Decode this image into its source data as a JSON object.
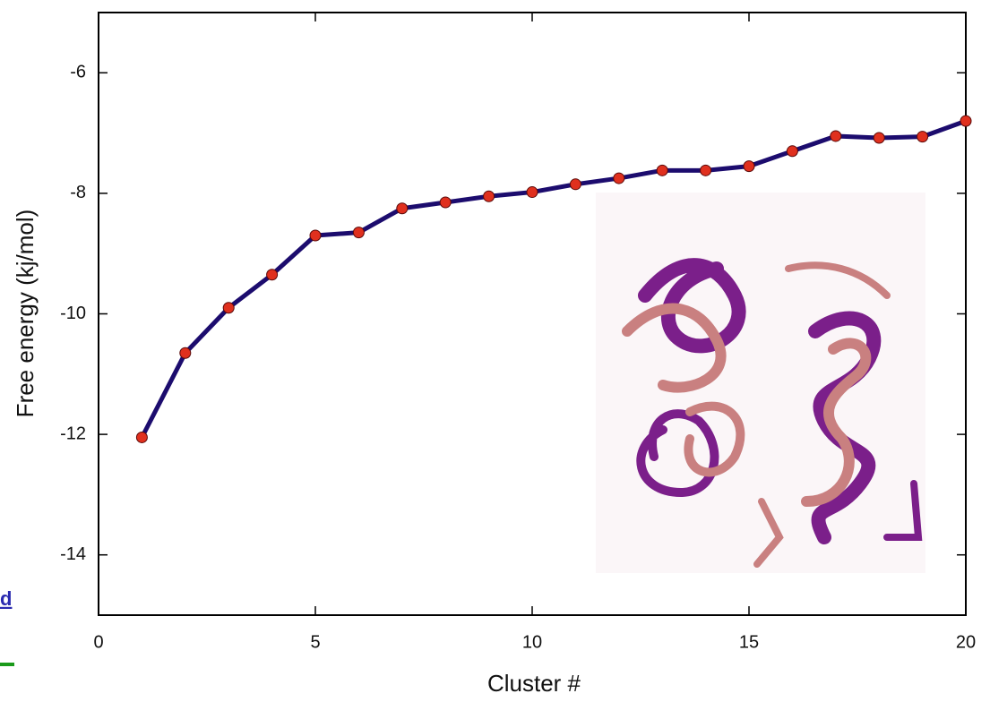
{
  "chart_data": {
    "type": "line",
    "xlabel": "Cluster #",
    "ylabel": "Free energy (kj/mol)",
    "x": [
      1,
      2,
      3,
      4,
      5,
      6,
      7,
      8,
      9,
      10,
      11,
      12,
      13,
      14,
      15,
      16,
      17,
      18,
      19,
      20
    ],
    "series": [
      {
        "color": "#1c0c6e",
        "marker_color": "#e0301e",
        "values": [
          -12.05,
          -10.65,
          -9.9,
          -9.35,
          -8.7,
          -8.65,
          -8.25,
          -8.15,
          -8.05,
          -7.98,
          -7.85,
          -7.75,
          -7.62,
          -7.62,
          -7.55,
          -7.3,
          -7.05,
          -7.08,
          -7.06,
          -6.8
        ]
      }
    ],
    "xlim": [
      0,
      20
    ],
    "xticks": [
      0,
      5,
      10,
      15,
      20
    ],
    "ylim": [
      -15,
      -5
    ],
    "yticks": [
      -14,
      -12,
      -10,
      -8,
      -6
    ]
  },
  "left_link": "d"
}
